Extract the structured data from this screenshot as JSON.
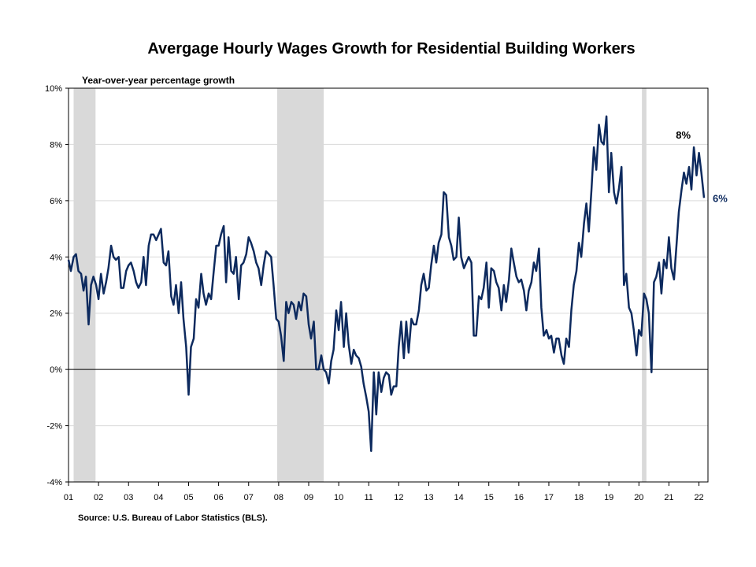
{
  "chart_data": {
    "type": "line",
    "title": "Avergage Hourly Wages Growth for Residential Building Workers",
    "ylabel": "Year-over-year percentage growth",
    "source": "Source: U.S. Bureau of Labor Statistics (BLS).",
    "ylim": [
      -4,
      10
    ],
    "xlim": [
      2001,
      2022.3
    ],
    "y_ticks": [
      10,
      8,
      6,
      4,
      2,
      0,
      -2,
      -4
    ],
    "y_tick_labels": [
      "10%",
      "8%",
      "6%",
      "4%",
      "2%",
      "0%",
      "-2%",
      "-4%"
    ],
    "x_ticks": [
      2001,
      2002,
      2003,
      2004,
      2005,
      2006,
      2007,
      2008,
      2009,
      2010,
      2011,
      2012,
      2013,
      2014,
      2015,
      2016,
      2017,
      2018,
      2019,
      2020,
      2021,
      2022
    ],
    "x_tick_labels": [
      "01",
      "02",
      "03",
      "04",
      "05",
      "06",
      "07",
      "08",
      "09",
      "10",
      "11",
      "12",
      "13",
      "14",
      "15",
      "16",
      "17",
      "18",
      "19",
      "20",
      "21",
      "22"
    ],
    "recession_bands": [
      [
        2001.17,
        2001.9
      ],
      [
        2007.95,
        2009.5
      ],
      [
        2020.1,
        2020.25
      ]
    ],
    "grid": true,
    "series": [
      {
        "name": "",
        "color": "#0d2a5e",
        "points": [
          [
            2001.0,
            3.9
          ],
          [
            2001.08,
            3.5
          ],
          [
            2001.17,
            4.0
          ],
          [
            2001.25,
            4.1
          ],
          [
            2001.33,
            3.5
          ],
          [
            2001.42,
            3.4
          ],
          [
            2001.5,
            2.8
          ],
          [
            2001.58,
            3.3
          ],
          [
            2001.67,
            1.6
          ],
          [
            2001.75,
            3.0
          ],
          [
            2001.83,
            3.3
          ],
          [
            2001.92,
            3.0
          ],
          [
            2002.0,
            2.5
          ],
          [
            2002.08,
            3.4
          ],
          [
            2002.17,
            2.7
          ],
          [
            2002.25,
            3.1
          ],
          [
            2002.33,
            3.6
          ],
          [
            2002.42,
            4.4
          ],
          [
            2002.5,
            4.0
          ],
          [
            2002.58,
            3.9
          ],
          [
            2002.67,
            4.0
          ],
          [
            2002.75,
            2.9
          ],
          [
            2002.83,
            2.9
          ],
          [
            2002.92,
            3.5
          ],
          [
            2003.0,
            3.7
          ],
          [
            2003.08,
            3.8
          ],
          [
            2003.17,
            3.5
          ],
          [
            2003.25,
            3.1
          ],
          [
            2003.33,
            2.9
          ],
          [
            2003.42,
            3.1
          ],
          [
            2003.5,
            4.0
          ],
          [
            2003.58,
            3.0
          ],
          [
            2003.67,
            4.4
          ],
          [
            2003.75,
            4.8
          ],
          [
            2003.83,
            4.8
          ],
          [
            2003.92,
            4.6
          ],
          [
            2004.0,
            4.8
          ],
          [
            2004.08,
            5.0
          ],
          [
            2004.17,
            3.8
          ],
          [
            2004.25,
            3.7
          ],
          [
            2004.33,
            4.2
          ],
          [
            2004.42,
            2.6
          ],
          [
            2004.5,
            2.3
          ],
          [
            2004.58,
            3.0
          ],
          [
            2004.67,
            2.0
          ],
          [
            2004.75,
            3.1
          ],
          [
            2004.83,
            1.8
          ],
          [
            2004.92,
            0.8
          ],
          [
            2005.0,
            -0.9
          ],
          [
            2005.08,
            0.8
          ],
          [
            2005.17,
            1.1
          ],
          [
            2005.25,
            2.5
          ],
          [
            2005.33,
            2.2
          ],
          [
            2005.42,
            3.4
          ],
          [
            2005.5,
            2.7
          ],
          [
            2005.58,
            2.3
          ],
          [
            2005.67,
            2.7
          ],
          [
            2005.75,
            2.5
          ],
          [
            2005.83,
            3.4
          ],
          [
            2005.92,
            4.4
          ],
          [
            2006.0,
            4.4
          ],
          [
            2006.08,
            4.8
          ],
          [
            2006.17,
            5.1
          ],
          [
            2006.25,
            3.1
          ],
          [
            2006.33,
            4.7
          ],
          [
            2006.42,
            3.5
          ],
          [
            2006.5,
            3.4
          ],
          [
            2006.58,
            4.0
          ],
          [
            2006.67,
            2.5
          ],
          [
            2006.75,
            3.7
          ],
          [
            2006.83,
            3.8
          ],
          [
            2006.92,
            4.1
          ],
          [
            2007.0,
            4.7
          ],
          [
            2007.08,
            4.5
          ],
          [
            2007.17,
            4.2
          ],
          [
            2007.25,
            3.8
          ],
          [
            2007.33,
            3.6
          ],
          [
            2007.42,
            3.0
          ],
          [
            2007.5,
            3.7
          ],
          [
            2007.58,
            4.2
          ],
          [
            2007.67,
            4.1
          ],
          [
            2007.75,
            4.0
          ],
          [
            2007.83,
            3.0
          ],
          [
            2007.92,
            1.8
          ],
          [
            2008.0,
            1.7
          ],
          [
            2008.08,
            1.2
          ],
          [
            2008.17,
            0.3
          ],
          [
            2008.25,
            2.4
          ],
          [
            2008.33,
            2.0
          ],
          [
            2008.42,
            2.4
          ],
          [
            2008.5,
            2.3
          ],
          [
            2008.58,
            1.8
          ],
          [
            2008.67,
            2.4
          ],
          [
            2008.75,
            2.1
          ],
          [
            2008.83,
            2.7
          ],
          [
            2008.92,
            2.6
          ],
          [
            2009.0,
            1.6
          ],
          [
            2009.08,
            1.1
          ],
          [
            2009.17,
            1.7
          ],
          [
            2009.25,
            -0.0
          ],
          [
            2009.33,
            0.0
          ],
          [
            2009.42,
            0.5
          ],
          [
            2009.5,
            0.0
          ],
          [
            2009.58,
            -0.1
          ],
          [
            2009.67,
            -0.5
          ],
          [
            2009.75,
            0.3
          ],
          [
            2009.83,
            0.7
          ],
          [
            2009.92,
            2.1
          ],
          [
            2010.0,
            1.4
          ],
          [
            2010.08,
            2.4
          ],
          [
            2010.17,
            0.8
          ],
          [
            2010.25,
            2.0
          ],
          [
            2010.33,
            0.9
          ],
          [
            2010.42,
            0.2
          ],
          [
            2010.5,
            0.7
          ],
          [
            2010.58,
            0.5
          ],
          [
            2010.67,
            0.4
          ],
          [
            2010.75,
            0.1
          ],
          [
            2010.83,
            -0.5
          ],
          [
            2010.92,
            -1.0
          ],
          [
            2011.0,
            -1.5
          ],
          [
            2011.08,
            -2.9
          ],
          [
            2011.17,
            -0.1
          ],
          [
            2011.25,
            -1.6
          ],
          [
            2011.33,
            -0.1
          ],
          [
            2011.42,
            -0.8
          ],
          [
            2011.5,
            -0.3
          ],
          [
            2011.58,
            -0.1
          ],
          [
            2011.67,
            -0.2
          ],
          [
            2011.75,
            -0.9
          ],
          [
            2011.83,
            -0.6
          ],
          [
            2011.92,
            -0.6
          ],
          [
            2012.0,
            0.8
          ],
          [
            2012.08,
            1.7
          ],
          [
            2012.17,
            0.4
          ],
          [
            2012.25,
            1.7
          ],
          [
            2012.33,
            0.6
          ],
          [
            2012.42,
            1.8
          ],
          [
            2012.5,
            1.6
          ],
          [
            2012.58,
            1.6
          ],
          [
            2012.67,
            2.1
          ],
          [
            2012.75,
            3.0
          ],
          [
            2012.83,
            3.4
          ],
          [
            2012.92,
            2.8
          ],
          [
            2013.0,
            2.9
          ],
          [
            2013.08,
            3.7
          ],
          [
            2013.17,
            4.4
          ],
          [
            2013.25,
            3.8
          ],
          [
            2013.33,
            4.5
          ],
          [
            2013.42,
            4.8
          ],
          [
            2013.5,
            6.3
          ],
          [
            2013.58,
            6.2
          ],
          [
            2013.67,
            4.7
          ],
          [
            2013.75,
            4.4
          ],
          [
            2013.83,
            3.9
          ],
          [
            2013.92,
            4.0
          ],
          [
            2014.0,
            5.4
          ],
          [
            2014.08,
            4.0
          ],
          [
            2014.17,
            3.6
          ],
          [
            2014.25,
            3.8
          ],
          [
            2014.33,
            4.0
          ],
          [
            2014.42,
            3.8
          ],
          [
            2014.5,
            1.2
          ],
          [
            2014.58,
            1.2
          ],
          [
            2014.67,
            2.6
          ],
          [
            2014.75,
            2.5
          ],
          [
            2014.83,
            2.9
          ],
          [
            2014.92,
            3.8
          ],
          [
            2015.0,
            2.2
          ],
          [
            2015.08,
            3.6
          ],
          [
            2015.17,
            3.5
          ],
          [
            2015.25,
            3.1
          ],
          [
            2015.33,
            2.9
          ],
          [
            2015.42,
            2.1
          ],
          [
            2015.5,
            3.0
          ],
          [
            2015.58,
            2.4
          ],
          [
            2015.67,
            3.2
          ],
          [
            2015.75,
            4.3
          ],
          [
            2015.83,
            3.8
          ],
          [
            2015.92,
            3.3
          ],
          [
            2016.0,
            3.1
          ],
          [
            2016.08,
            3.2
          ],
          [
            2016.17,
            2.8
          ],
          [
            2016.25,
            2.1
          ],
          [
            2016.33,
            2.8
          ],
          [
            2016.42,
            3.1
          ],
          [
            2016.5,
            3.8
          ],
          [
            2016.58,
            3.5
          ],
          [
            2016.67,
            4.3
          ],
          [
            2016.75,
            2.2
          ],
          [
            2016.83,
            1.2
          ],
          [
            2016.92,
            1.4
          ],
          [
            2017.0,
            1.1
          ],
          [
            2017.08,
            1.2
          ],
          [
            2017.17,
            0.6
          ],
          [
            2017.25,
            1.1
          ],
          [
            2017.33,
            1.1
          ],
          [
            2017.42,
            0.5
          ],
          [
            2017.5,
            0.2
          ],
          [
            2017.58,
            1.1
          ],
          [
            2017.67,
            0.8
          ],
          [
            2017.75,
            2.1
          ],
          [
            2017.83,
            3.0
          ],
          [
            2017.92,
            3.5
          ],
          [
            2018.0,
            4.5
          ],
          [
            2018.08,
            4.0
          ],
          [
            2018.17,
            5.2
          ],
          [
            2018.25,
            5.9
          ],
          [
            2018.33,
            4.9
          ],
          [
            2018.42,
            6.4
          ],
          [
            2018.5,
            7.9
          ],
          [
            2018.58,
            7.1
          ],
          [
            2018.67,
            8.7
          ],
          [
            2018.75,
            8.1
          ],
          [
            2018.83,
            8.0
          ],
          [
            2018.92,
            9.0
          ],
          [
            2019.0,
            6.3
          ],
          [
            2019.08,
            7.7
          ],
          [
            2019.17,
            6.3
          ],
          [
            2019.25,
            5.9
          ],
          [
            2019.33,
            6.4
          ],
          [
            2019.42,
            7.2
          ],
          [
            2019.5,
            3.0
          ],
          [
            2019.58,
            3.4
          ],
          [
            2019.67,
            2.2
          ],
          [
            2019.75,
            2.0
          ],
          [
            2019.83,
            1.4
          ],
          [
            2019.92,
            0.5
          ],
          [
            2020.0,
            1.4
          ],
          [
            2020.08,
            1.2
          ],
          [
            2020.17,
            2.7
          ],
          [
            2020.25,
            2.5
          ],
          [
            2020.33,
            2.0
          ],
          [
            2020.42,
            -0.1
          ],
          [
            2020.5,
            3.1
          ],
          [
            2020.58,
            3.3
          ],
          [
            2020.67,
            3.8
          ],
          [
            2020.75,
            2.7
          ],
          [
            2020.83,
            3.9
          ],
          [
            2020.92,
            3.6
          ],
          [
            2021.0,
            4.7
          ],
          [
            2021.08,
            3.6
          ],
          [
            2021.17,
            3.2
          ],
          [
            2021.25,
            4.4
          ],
          [
            2021.33,
            5.6
          ],
          [
            2021.42,
            6.4
          ],
          [
            2021.5,
            7.0
          ],
          [
            2021.58,
            6.6
          ],
          [
            2021.67,
            7.2
          ],
          [
            2021.75,
            6.4
          ],
          [
            2021.83,
            7.9
          ],
          [
            2021.92,
            6.9
          ],
          [
            2022.0,
            7.7
          ],
          [
            2022.08,
            7.0
          ],
          [
            2022.17,
            6.1
          ]
        ]
      }
    ],
    "annotations": [
      {
        "text": "8%",
        "x": 2021.83,
        "y": 7.9,
        "color": "#000000"
      },
      {
        "text": "6%",
        "x": 2022.17,
        "y": 6.1,
        "color": "#0d2a5e"
      }
    ]
  }
}
